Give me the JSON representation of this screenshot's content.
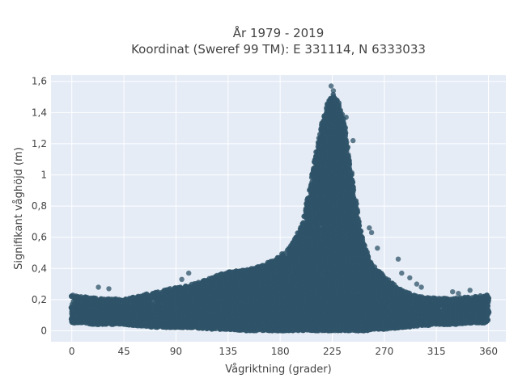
{
  "chart_data": {
    "type": "scatter",
    "title": "År 1979 - 2019",
    "subtitle": "Koordinat (Sweref 99 TM): E 331114, N 6333033",
    "xlabel": "Vågriktning (grader)",
    "ylabel": "Signifikant våghöjd (m)",
    "xlim": [
      -18,
      375
    ],
    "ylim": [
      -0.07,
      1.64
    ],
    "xticks": [
      0,
      45,
      90,
      135,
      180,
      225,
      270,
      315,
      360
    ],
    "xtick_labels": [
      "0",
      "45",
      "90",
      "135",
      "180",
      "225",
      "270",
      "315",
      "360"
    ],
    "yticks": [
      0,
      0.2,
      0.4,
      0.6,
      0.8,
      1,
      1.2,
      1.4,
      1.6
    ],
    "ytick_labels": [
      "0",
      "0,2",
      "0,4",
      "0,6",
      "0,8",
      "1",
      "1,2",
      "1,4",
      "1,6"
    ],
    "grid": true,
    "background": "#e5ecf6",
    "marker_color": "#2f5468",
    "envelope": {
      "direction_deg": [
        0,
        10,
        20,
        30,
        45,
        60,
        75,
        90,
        105,
        120,
        135,
        150,
        165,
        180,
        190,
        200,
        205,
        210,
        215,
        220,
        225,
        230,
        235,
        240,
        245,
        250,
        255,
        260,
        270,
        285,
        300,
        315,
        330,
        345,
        360
      ],
      "max_height_m": [
        0.23,
        0.22,
        0.21,
        0.21,
        0.2,
        0.23,
        0.25,
        0.28,
        0.3,
        0.34,
        0.38,
        0.39,
        0.42,
        0.48,
        0.55,
        0.7,
        0.9,
        1.1,
        1.3,
        1.45,
        1.52,
        1.47,
        1.35,
        1.1,
        0.85,
        0.62,
        0.5,
        0.42,
        0.35,
        0.26,
        0.22,
        0.21,
        0.21,
        0.22,
        0.23
      ],
      "min_height_m": [
        0.05,
        0.05,
        0.04,
        0.04,
        0.04,
        0.03,
        0.02,
        0.02,
        0.02,
        0.01,
        0.01,
        0.0,
        0.0,
        0.0,
        0.0,
        0.0,
        0.0,
        0.0,
        0.0,
        0.0,
        0.0,
        0.0,
        0.0,
        0.0,
        0.0,
        0.0,
        0.0,
        0.01,
        0.01,
        0.02,
        0.03,
        0.04,
        0.04,
        0.05,
        0.05
      ]
    },
    "outliers": [
      {
        "x": 23,
        "y": 0.28
      },
      {
        "x": 32,
        "y": 0.27
      },
      {
        "x": 95,
        "y": 0.33
      },
      {
        "x": 101,
        "y": 0.37
      },
      {
        "x": 128,
        "y": 0.36
      },
      {
        "x": 175,
        "y": 0.43
      },
      {
        "x": 209,
        "y": 0.72
      },
      {
        "x": 224,
        "y": 1.57
      },
      {
        "x": 226,
        "y": 1.54
      },
      {
        "x": 237,
        "y": 1.37
      },
      {
        "x": 243,
        "y": 1.22
      },
      {
        "x": 257,
        "y": 0.66
      },
      {
        "x": 259,
        "y": 0.63
      },
      {
        "x": 264,
        "y": 0.53
      },
      {
        "x": 282,
        "y": 0.46
      },
      {
        "x": 285,
        "y": 0.37
      },
      {
        "x": 292,
        "y": 0.34
      },
      {
        "x": 298,
        "y": 0.3
      },
      {
        "x": 302,
        "y": 0.28
      },
      {
        "x": 329,
        "y": 0.25
      },
      {
        "x": 334,
        "y": 0.24
      },
      {
        "x": 344,
        "y": 0.26
      }
    ]
  }
}
